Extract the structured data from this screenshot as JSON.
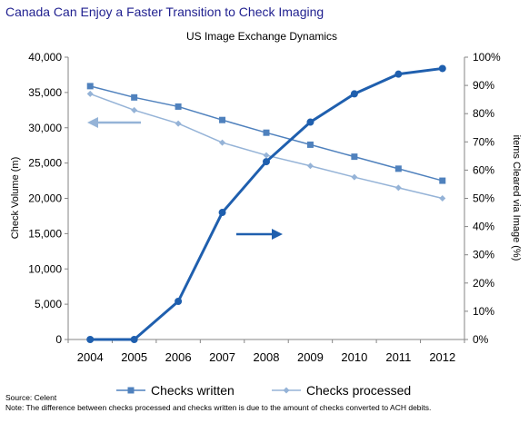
{
  "page": {
    "title": "Canada Can Enjoy a Faster Transition to Check Imaging",
    "source": "Source: Celent",
    "note": "Note: The difference between checks processed and checks written is due to the amount of checks converted to ACH debits."
  },
  "chart_data": {
    "type": "line",
    "title": "US Image Exchange Dynamics",
    "categories": [
      "2004",
      "2005",
      "2006",
      "2007",
      "2008",
      "2009",
      "2010",
      "2011",
      "2012"
    ],
    "ylabel": "Check Volume (m)",
    "y2label": "items Cleared via Image (%)",
    "ylim": [
      0,
      40000
    ],
    "y2lim": [
      0,
      100
    ],
    "yticks": [
      "0",
      "5,000",
      "10,000",
      "15,000",
      "20,000",
      "25,000",
      "30,000",
      "35,000",
      "40,000"
    ],
    "y2ticks": [
      "0%",
      "10%",
      "20%",
      "30%",
      "40%",
      "50%",
      "60%",
      "70%",
      "80%",
      "90%",
      "100%"
    ],
    "series": [
      {
        "name": "Checks written",
        "axis": "left",
        "color": "#4f81bd",
        "marker": "square",
        "values": [
          35900,
          34300,
          33000,
          31100,
          29300,
          27600,
          25900,
          24200,
          22500
        ]
      },
      {
        "name": "Checks processed",
        "axis": "left",
        "color": "#95b3d7",
        "marker": "diamond",
        "values": [
          34800,
          32500,
          30600,
          27900,
          26100,
          24600,
          23000,
          21500,
          20000
        ]
      },
      {
        "name": "",
        "axis": "right",
        "color": "#1f5fae",
        "marker": "circle",
        "values": [
          0,
          0,
          13.5,
          45,
          63,
          77,
          87,
          94,
          96
        ]
      }
    ],
    "legend_position": "bottom",
    "annotations": [
      "left-arrow-to-left-axis",
      "right-arrow-to-right-axis"
    ]
  }
}
